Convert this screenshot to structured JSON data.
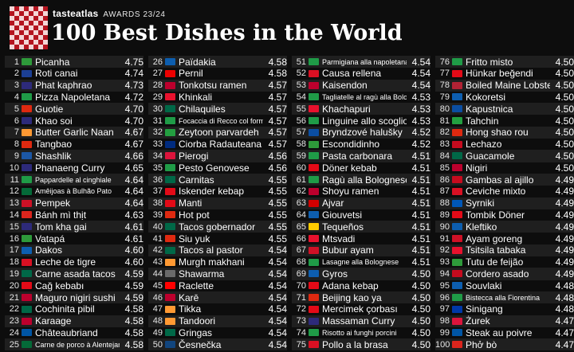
{
  "header": {
    "brand": "tasteatlas",
    "awards": "AWARDS 23/24",
    "title": "100 Best Dishes in the World"
  },
  "columns": [
    [
      {
        "rank": "1",
        "name": "Picanha",
        "score": "4.75",
        "flag_color": "#2e9a3a"
      },
      {
        "rank": "2",
        "name": "Roti canai",
        "score": "4.74",
        "flag_color": "#1c3f94"
      },
      {
        "rank": "3",
        "name": "Phat kaphrao",
        "score": "4.73",
        "flag_color": "#2d2a7a"
      },
      {
        "rank": "4",
        "name": "Pizza Napoletana",
        "score": "4.72",
        "flag_color": "#1f9b47"
      },
      {
        "rank": "5",
        "name": "Guotie",
        "score": "4.70",
        "flag_color": "#de2910"
      },
      {
        "rank": "6",
        "name": "Khao soi",
        "score": "4.70",
        "flag_color": "#2d2a7a"
      },
      {
        "rank": "7",
        "name": "Butter Garlic Naan",
        "score": "4.67",
        "flag_color": "#ff9933"
      },
      {
        "rank": "8",
        "name": "Tangbao",
        "score": "4.67",
        "flag_color": "#de2910"
      },
      {
        "rank": "9",
        "name": "Shashlik",
        "score": "4.66",
        "flag_color": "#1c57a5"
      },
      {
        "rank": "10",
        "name": "Phanaeng Curry",
        "score": "4.65",
        "flag_color": "#2d2a7a"
      },
      {
        "rank": "11",
        "name": "Pappardelle al cinghiale",
        "score": "4.64",
        "flag_color": "#1f9b47",
        "small": true
      },
      {
        "rank": "12",
        "name": "Amêijoas à Bulhão Pato",
        "score": "4.64",
        "flag_color": "#046a38",
        "small": true
      },
      {
        "rank": "13",
        "name": "Pempek",
        "score": "4.64",
        "flag_color": "#ce1126"
      },
      {
        "rank": "14",
        "name": "Bánh mì thịt",
        "score": "4.63",
        "flag_color": "#da251d"
      },
      {
        "rank": "15",
        "name": "Tom kha gai",
        "score": "4.61",
        "flag_color": "#2d2a7a"
      },
      {
        "rank": "16",
        "name": "Vatapá",
        "score": "4.61",
        "flag_color": "#2e9a3a"
      },
      {
        "rank": "17",
        "name": "Dakos",
        "score": "4.60",
        "flag_color": "#0d5eaf"
      },
      {
        "rank": "18",
        "name": "Leche de tigre",
        "score": "4.60",
        "flag_color": "#d91023"
      },
      {
        "rank": "19",
        "name": "Carne asada tacos",
        "score": "4.59",
        "flag_color": "#006847"
      },
      {
        "rank": "20",
        "name": "Cağ kebabı",
        "score": "4.59",
        "flag_color": "#e30a17"
      },
      {
        "rank": "21",
        "name": "Maguro nigiri sushi",
        "score": "4.59",
        "flag_color": "#bc002d"
      },
      {
        "rank": "22",
        "name": "Cochinita pibil",
        "score": "4.58",
        "flag_color": "#006847"
      },
      {
        "rank": "23",
        "name": "Karaage",
        "score": "4.58",
        "flag_color": "#bc002d"
      },
      {
        "rank": "24",
        "name": "Châteaubriand",
        "score": "4.58",
        "flag_color": "#0055a4"
      },
      {
        "rank": "25",
        "name": "Carne de porco à Alentejana",
        "score": "4.58",
        "flag_color": "#046a38",
        "small": true
      }
    ],
    [
      {
        "rank": "26",
        "name": "Païdakia",
        "score": "4.58",
        "flag_color": "#0d5eaf"
      },
      {
        "rank": "27",
        "name": "Pernil",
        "score": "4.58",
        "flag_color": "#ed0000"
      },
      {
        "rank": "28",
        "name": "Tonkotsu ramen",
        "score": "4.57",
        "flag_color": "#bc002d"
      },
      {
        "rank": "29",
        "name": "Khinkali",
        "score": "4.57",
        "flag_color": "#e8112d"
      },
      {
        "rank": "30",
        "name": "Chilaquiles",
        "score": "4.57",
        "flag_color": "#006847"
      },
      {
        "rank": "31",
        "name": "Focaccia di Recco col formaggio",
        "score": "4.57",
        "flag_color": "#1f9b47",
        "small": true
      },
      {
        "rank": "32",
        "name": "Zeytoon parvardeh",
        "score": "4.57",
        "flag_color": "#239f40"
      },
      {
        "rank": "33",
        "name": "Ciorba Radauteana",
        "score": "4.57",
        "flag_color": "#002b7f"
      },
      {
        "rank": "34",
        "name": "Pierogi",
        "score": "4.56",
        "flag_color": "#dc143c"
      },
      {
        "rank": "35",
        "name": "Pesto Genovese",
        "score": "4.56",
        "flag_color": "#1f9b47"
      },
      {
        "rank": "36",
        "name": "Carnitas",
        "score": "4.55",
        "flag_color": "#006847"
      },
      {
        "rank": "37",
        "name": "Iskender kebap",
        "score": "4.55",
        "flag_color": "#e30a17"
      },
      {
        "rank": "38",
        "name": "Manti",
        "score": "4.55",
        "flag_color": "#e30a17"
      },
      {
        "rank": "39",
        "name": "Hot pot",
        "score": "4.55",
        "flag_color": "#de2910"
      },
      {
        "rank": "40",
        "name": "Tacos gobernador",
        "score": "4.55",
        "flag_color": "#006847"
      },
      {
        "rank": "41",
        "name": "Siu yuk",
        "score": "4.55",
        "flag_color": "#de2910"
      },
      {
        "rank": "42",
        "name": "Tacos al pastor",
        "score": "4.54",
        "flag_color": "#006847"
      },
      {
        "rank": "43",
        "name": "Murgh makhani",
        "score": "4.54",
        "flag_color": "#ff9933"
      },
      {
        "rank": "44",
        "name": "Shawarma",
        "score": "4.54",
        "flag_color": "#6a6a6a"
      },
      {
        "rank": "45",
        "name": "Raclette",
        "score": "4.54",
        "flag_color": "#ff0000"
      },
      {
        "rank": "46",
        "name": "Karē",
        "score": "4.54",
        "flag_color": "#bc002d"
      },
      {
        "rank": "47",
        "name": "Tikka",
        "score": "4.54",
        "flag_color": "#ff9933"
      },
      {
        "rank": "48",
        "name": "Tandoori",
        "score": "4.54",
        "flag_color": "#ff9933"
      },
      {
        "rank": "49",
        "name": "Gringas",
        "score": "4.54",
        "flag_color": "#006847"
      },
      {
        "rank": "50",
        "name": "Česnečka",
        "score": "4.54",
        "flag_color": "#11457e"
      }
    ],
    [
      {
        "rank": "51",
        "name": "Parmigiana alla napoletana",
        "score": "4.54",
        "flag_color": "#1f9b47",
        "small": true
      },
      {
        "rank": "52",
        "name": "Causa rellena",
        "score": "4.54",
        "flag_color": "#d91023"
      },
      {
        "rank": "53",
        "name": "Kaisendon",
        "score": "4.54",
        "flag_color": "#bc002d"
      },
      {
        "rank": "54",
        "name": "Tagliatelle al ragù alla Bolognese",
        "score": "4.53",
        "flag_color": "#1f9b47",
        "small": true
      },
      {
        "rank": "55",
        "name": "Khachapuri",
        "score": "4.53",
        "flag_color": "#e8112d"
      },
      {
        "rank": "56",
        "name": "Linguine allo scoglio",
        "score": "4.53",
        "flag_color": "#1f9b47"
      },
      {
        "rank": "57",
        "name": "Bryndzové halušky",
        "score": "4.52",
        "flag_color": "#0b4ea2"
      },
      {
        "rank": "58",
        "name": "Escondidinho",
        "score": "4.52",
        "flag_color": "#2e9a3a"
      },
      {
        "rank": "59",
        "name": "Pasta carbonara",
        "score": "4.51",
        "flag_color": "#1f9b47"
      },
      {
        "rank": "60",
        "name": "Döner kebab",
        "score": "4.51",
        "flag_color": "#e30a17"
      },
      {
        "rank": "61",
        "name": "Ragù alla Bolognese",
        "score": "4.51",
        "flag_color": "#1f9b47"
      },
      {
        "rank": "62",
        "name": "Shoyu ramen",
        "score": "4.51",
        "flag_color": "#bc002d"
      },
      {
        "rank": "63",
        "name": "Ajvar",
        "score": "4.51",
        "flag_color": "#d20000"
      },
      {
        "rank": "64",
        "name": "Giouvetsi",
        "score": "4.51",
        "flag_color": "#0d5eaf"
      },
      {
        "rank": "65",
        "name": "Tequeños",
        "score": "4.51",
        "flag_color": "#ffcc00"
      },
      {
        "rank": "66",
        "name": "Mtsvadi",
        "score": "4.51",
        "flag_color": "#e8112d"
      },
      {
        "rank": "67",
        "name": "Bubur ayam",
        "score": "4.51",
        "flag_color": "#ce1126"
      },
      {
        "rank": "68",
        "name": "Lasagne alla Bolognese",
        "score": "4.51",
        "flag_color": "#1f9b47",
        "small": true
      },
      {
        "rank": "69",
        "name": "Gyros",
        "score": "4.50",
        "flag_color": "#0d5eaf"
      },
      {
        "rank": "70",
        "name": "Adana kebap",
        "score": "4.50",
        "flag_color": "#e30a17"
      },
      {
        "rank": "71",
        "name": "Beijing kao ya",
        "score": "4.50",
        "flag_color": "#de2910"
      },
      {
        "rank": "72",
        "name": "Mercimek çorbası",
        "score": "4.50",
        "flag_color": "#e30a17"
      },
      {
        "rank": "73",
        "name": "Massaman Curry",
        "score": "4.50",
        "flag_color": "#2d2a7a"
      },
      {
        "rank": "74",
        "name": "Risotto ai funghi porcini",
        "score": "4.50",
        "flag_color": "#1f9b47",
        "small": true
      },
      {
        "rank": "75",
        "name": "Pollo a la brasa",
        "score": "4.50",
        "flag_color": "#d91023"
      }
    ],
    [
      {
        "rank": "76",
        "name": "Fritto misto",
        "score": "4.50",
        "flag_color": "#1f9b47"
      },
      {
        "rank": "77",
        "name": "Hünkar beğendi",
        "score": "4.50",
        "flag_color": "#e30a17"
      },
      {
        "rank": "78",
        "name": "Boiled Maine Lobster",
        "score": "4.50",
        "flag_color": "#b22234"
      },
      {
        "rank": "79",
        "name": "Kokoretsi",
        "score": "4.50",
        "flag_color": "#0d5eaf"
      },
      {
        "rank": "80",
        "name": "Kapustnica",
        "score": "4.50",
        "flag_color": "#0b4ea2"
      },
      {
        "rank": "81",
        "name": "Tahchin",
        "score": "4.50",
        "flag_color": "#239f40"
      },
      {
        "rank": "82",
        "name": "Hong shao rou",
        "score": "4.50",
        "flag_color": "#de2910"
      },
      {
        "rank": "83",
        "name": "Lechazo",
        "score": "4.50",
        "flag_color": "#c60b1e"
      },
      {
        "rank": "84",
        "name": "Guacamole",
        "score": "4.50",
        "flag_color": "#006847"
      },
      {
        "rank": "85",
        "name": "Nigiri",
        "score": "4.50",
        "flag_color": "#bc002d"
      },
      {
        "rank": "86",
        "name": "Gambas al ajillo",
        "score": "4.49",
        "flag_color": "#c60b1e"
      },
      {
        "rank": "87",
        "name": "Ceviche mixto",
        "score": "4.49",
        "flag_color": "#d91023"
      },
      {
        "rank": "88",
        "name": "Syrniki",
        "score": "4.49",
        "flag_color": "#0057b7"
      },
      {
        "rank": "89",
        "name": "Tombik Döner",
        "score": "4.49",
        "flag_color": "#e30a17"
      },
      {
        "rank": "90",
        "name": "Kleftiko",
        "score": "4.49",
        "flag_color": "#0d5eaf"
      },
      {
        "rank": "91",
        "name": "Ayam goreng",
        "score": "4.49",
        "flag_color": "#ce1126"
      },
      {
        "rank": "92",
        "name": "Tsitsila tabaka",
        "score": "4.49",
        "flag_color": "#e8112d"
      },
      {
        "rank": "93",
        "name": "Tutu de feijão",
        "score": "4.49",
        "flag_color": "#2e9a3a"
      },
      {
        "rank": "94",
        "name": "Cordero asado",
        "score": "4.49",
        "flag_color": "#c60b1e"
      },
      {
        "rank": "95",
        "name": "Souvlaki",
        "score": "4.48",
        "flag_color": "#0d5eaf"
      },
      {
        "rank": "96",
        "name": "Bistecca alla Fiorentina",
        "score": "4.48",
        "flag_color": "#1f9b47",
        "small": true
      },
      {
        "rank": "97",
        "name": "Sinigang",
        "score": "4.48",
        "flag_color": "#0038a8"
      },
      {
        "rank": "98",
        "name": "Żurek",
        "score": "4.47",
        "flag_color": "#dc143c"
      },
      {
        "rank": "99",
        "name": "Steak au poivre",
        "score": "4.47",
        "flag_color": "#0055a4"
      },
      {
        "rank": "100",
        "name": "Phở bò",
        "score": "4.47",
        "flag_color": "#da251d"
      }
    ]
  ]
}
